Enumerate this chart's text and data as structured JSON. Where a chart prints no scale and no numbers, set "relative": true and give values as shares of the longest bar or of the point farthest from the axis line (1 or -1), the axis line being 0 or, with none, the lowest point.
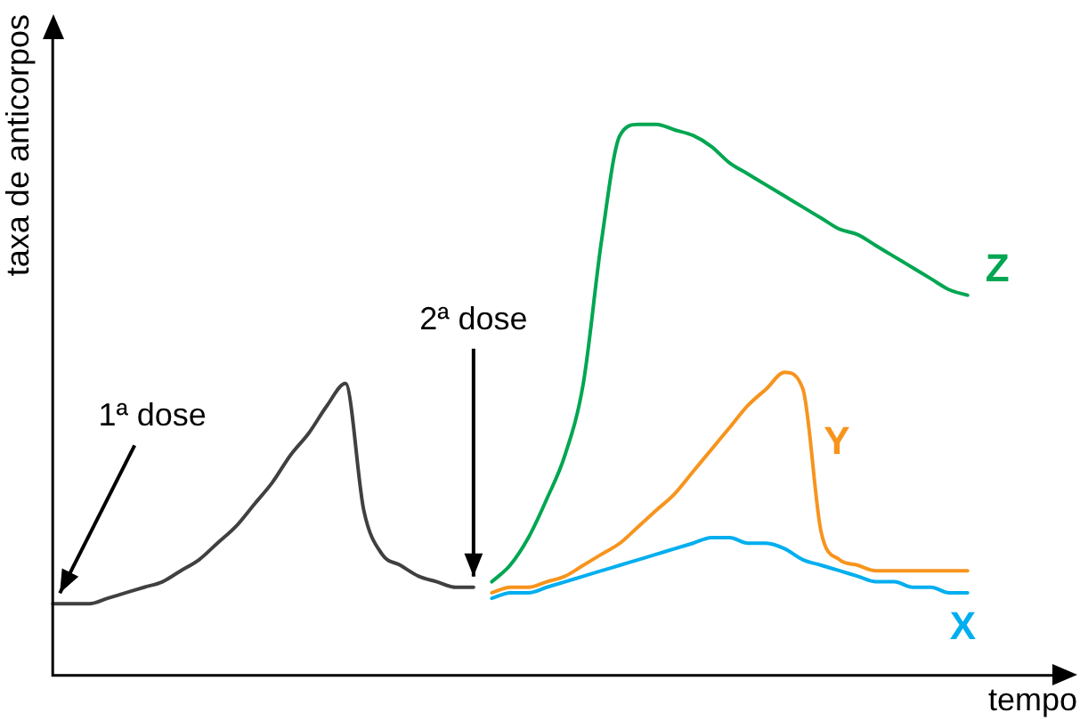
{
  "chart_data": {
    "type": "line",
    "relative": true,
    "xlabel": "tempo",
    "ylabel": "taxa de anticorpos",
    "annotations": [
      "1ª dose",
      "2ª dose"
    ],
    "legend": false,
    "grid": false,
    "marker": "none",
    "line_style": "solid",
    "categories": [
      null,
      null,
      null,
      null,
      null,
      null,
      null,
      null,
      null,
      null,
      null,
      null,
      null,
      null,
      null,
      null,
      null,
      null,
      null,
      null,
      null,
      null,
      null,
      null,
      null,
      null,
      null,
      null,
      null,
      null,
      null,
      null,
      null,
      null,
      null,
      null,
      null,
      null,
      null,
      null,
      null,
      null,
      null,
      null,
      null,
      null,
      null,
      null,
      null,
      null,
      null,
      null,
      null,
      null,
      null,
      null,
      null
    ],
    "series": [
      {
        "color": "#404040",
        "values": [
          0.13,
          0.13,
          0.13,
          0.14,
          0.15,
          0.16,
          0.17,
          0.19,
          0.21,
          0.24,
          0.27,
          0.31,
          0.35,
          0.4,
          0.44,
          0.49,
          0.53,
          0.3,
          0.22,
          0.2,
          0.18,
          0.17,
          0.16,
          0.16,
          null,
          null,
          null,
          null,
          null,
          null,
          null,
          null,
          null,
          null,
          null,
          null,
          null,
          null,
          null,
          null,
          null,
          null,
          null,
          null,
          null,
          null,
          null,
          null,
          null,
          null,
          null,
          null,
          null,
          null,
          null,
          null,
          null
        ]
      },
      {
        "name": "Z",
        "color": "#00a651",
        "values": [
          null,
          null,
          null,
          null,
          null,
          null,
          null,
          null,
          null,
          null,
          null,
          null,
          null,
          null,
          null,
          null,
          null,
          null,
          null,
          null,
          null,
          null,
          null,
          null,
          0.17,
          0.2,
          0.25,
          0.32,
          0.4,
          0.53,
          0.79,
          0.98,
          1.0,
          1.0,
          0.99,
          0.98,
          0.96,
          0.93,
          0.91,
          0.89,
          0.87,
          0.85,
          0.83,
          0.81,
          0.8,
          0.78,
          0.76,
          0.74,
          0.72,
          0.7,
          0.69,
          null,
          null,
          null,
          null,
          null,
          null
        ]
      },
      {
        "name": "Y",
        "color": "#f7941d",
        "values": [
          null,
          null,
          null,
          null,
          null,
          null,
          null,
          null,
          null,
          null,
          null,
          null,
          null,
          null,
          null,
          null,
          null,
          null,
          null,
          null,
          null,
          null,
          null,
          null,
          0.15,
          0.16,
          0.16,
          0.17,
          0.18,
          0.2,
          0.22,
          0.24,
          0.27,
          0.3,
          0.33,
          0.37,
          0.41,
          0.45,
          0.49,
          0.52,
          0.55,
          0.52,
          0.26,
          0.21,
          0.2,
          0.19,
          0.19,
          0.19,
          0.19,
          0.19,
          0.19,
          null,
          null,
          null,
          null,
          null,
          null
        ]
      },
      {
        "name": "X",
        "color": "#00aeef",
        "values": [
          null,
          null,
          null,
          null,
          null,
          null,
          null,
          null,
          null,
          null,
          null,
          null,
          null,
          null,
          null,
          null,
          null,
          null,
          null,
          null,
          null,
          null,
          null,
          null,
          0.14,
          0.15,
          0.15,
          0.16,
          0.17,
          0.18,
          0.19,
          0.2,
          0.21,
          0.22,
          0.23,
          0.24,
          0.25,
          0.25,
          0.24,
          0.24,
          0.23,
          0.21,
          0.2,
          0.19,
          0.18,
          0.17,
          0.17,
          0.16,
          0.16,
          0.15,
          0.15,
          null,
          null,
          null,
          null,
          null,
          null
        ]
      }
    ]
  }
}
